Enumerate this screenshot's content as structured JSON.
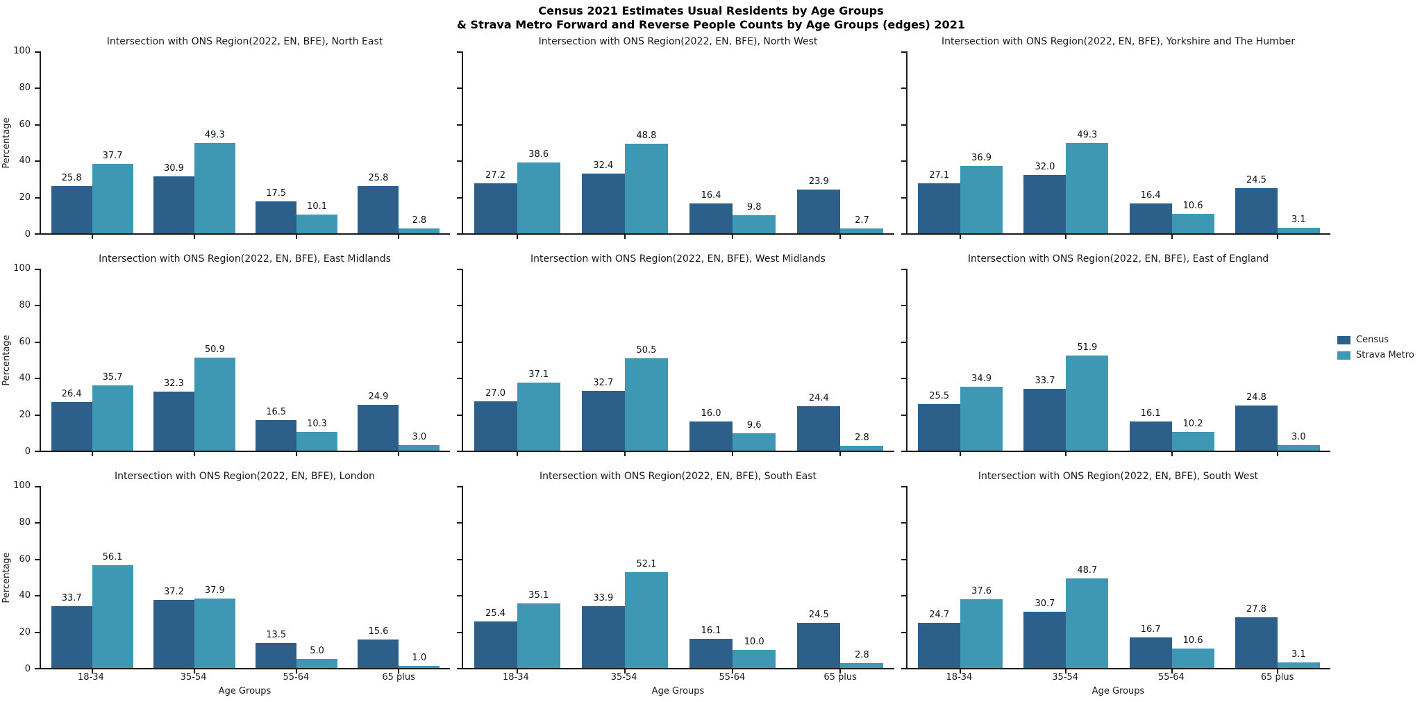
{
  "figure": {
    "title_line1": "Census 2021 Estimates Usual Residents by Age Groups",
    "title_line2": "& Strava Metro Forward and Reverse People Counts by Age Groups (edges) 2021",
    "xlabel": "Age Groups",
    "ylabel": "Percentage"
  },
  "colors": {
    "census": "#2c5f8a",
    "strava_metro": "#3e98b4",
    "axis": "#1a1a1a"
  },
  "legend": {
    "position": "center right",
    "entries": [
      {
        "label": "Census",
        "color": "#2c5f8a"
      },
      {
        "label": "Strava Metro",
        "color": "#3e98b4"
      }
    ]
  },
  "chart_data": [
    {
      "type": "bar",
      "title": "Intersection with ONS Region(2022, EN, BFE), North East",
      "region": "North East",
      "categories": [
        "18-34",
        "35-54",
        "55-64",
        "65 plus"
      ],
      "series": [
        {
          "name": "Census",
          "values": [
            25.8,
            30.9,
            17.5,
            25.8
          ]
        },
        {
          "name": "Strava Metro",
          "values": [
            37.7,
            49.3,
            10.1,
            2.8
          ]
        }
      ],
      "xlabel": "Age Groups",
      "ylabel": "Percentage",
      "ylim": [
        0,
        100
      ],
      "yticks": [
        0,
        20,
        40,
        60,
        80,
        100
      ],
      "grid": false
    },
    {
      "type": "bar",
      "title": "Intersection with ONS Region(2022, EN, BFE), North West",
      "region": "North West",
      "categories": [
        "18-34",
        "35-54",
        "55-64",
        "65 plus"
      ],
      "series": [
        {
          "name": "Census",
          "values": [
            27.2,
            32.4,
            16.4,
            23.9
          ]
        },
        {
          "name": "Strava Metro",
          "values": [
            38.6,
            48.8,
            9.8,
            2.7
          ]
        }
      ],
      "xlabel": "Age Groups",
      "ylabel": "Percentage",
      "ylim": [
        0,
        100
      ],
      "yticks": [
        0,
        20,
        40,
        60,
        80,
        100
      ],
      "grid": false
    },
    {
      "type": "bar",
      "title": "Intersection with ONS Region(2022, EN, BFE), Yorkshire and The Humber",
      "region": "Yorkshire and The Humber",
      "categories": [
        "18-34",
        "35-54",
        "55-64",
        "65 plus"
      ],
      "series": [
        {
          "name": "Census",
          "values": [
            27.1,
            32.0,
            16.4,
            24.5
          ]
        },
        {
          "name": "Strava Metro",
          "values": [
            36.9,
            49.3,
            10.6,
            3.1
          ]
        }
      ],
      "xlabel": "Age Groups",
      "ylabel": "Percentage",
      "ylim": [
        0,
        100
      ],
      "yticks": [
        0,
        20,
        40,
        60,
        80,
        100
      ],
      "grid": false
    },
    {
      "type": "bar",
      "title": "Intersection with ONS Region(2022, EN, BFE), East Midlands",
      "region": "East Midlands",
      "categories": [
        "18-34",
        "35-54",
        "55-64",
        "65 plus"
      ],
      "series": [
        {
          "name": "Census",
          "values": [
            26.4,
            32.3,
            16.5,
            24.9
          ]
        },
        {
          "name": "Strava Metro",
          "values": [
            35.7,
            50.9,
            10.3,
            3.0
          ]
        }
      ],
      "xlabel": "Age Groups",
      "ylabel": "Percentage",
      "ylim": [
        0,
        100
      ],
      "yticks": [
        0,
        20,
        40,
        60,
        80,
        100
      ],
      "grid": false
    },
    {
      "type": "bar",
      "title": "Intersection with ONS Region(2022, EN, BFE), West Midlands",
      "region": "West Midlands",
      "categories": [
        "18-34",
        "35-54",
        "55-64",
        "65 plus"
      ],
      "series": [
        {
          "name": "Census",
          "values": [
            27.0,
            32.7,
            16.0,
            24.4
          ]
        },
        {
          "name": "Strava Metro",
          "values": [
            37.1,
            50.5,
            9.6,
            2.8
          ]
        }
      ],
      "xlabel": "Age Groups",
      "ylabel": "Percentage",
      "ylim": [
        0,
        100
      ],
      "yticks": [
        0,
        20,
        40,
        60,
        80,
        100
      ],
      "grid": false
    },
    {
      "type": "bar",
      "title": "Intersection with ONS Region(2022, EN, BFE), East of England",
      "region": "East of England",
      "categories": [
        "18-34",
        "35-54",
        "55-64",
        "65 plus"
      ],
      "series": [
        {
          "name": "Census",
          "values": [
            25.5,
            33.7,
            16.1,
            24.8
          ]
        },
        {
          "name": "Strava Metro",
          "values": [
            34.9,
            51.9,
            10.2,
            3.0
          ]
        }
      ],
      "xlabel": "Age Groups",
      "ylabel": "Percentage",
      "ylim": [
        0,
        100
      ],
      "yticks": [
        0,
        20,
        40,
        60,
        80,
        100
      ],
      "grid": false
    },
    {
      "type": "bar",
      "title": "Intersection with ONS Region(2022, EN, BFE), London",
      "region": "London",
      "categories": [
        "18-34",
        "35-54",
        "55-64",
        "65 plus"
      ],
      "series": [
        {
          "name": "Census",
          "values": [
            33.7,
            37.2,
            13.5,
            15.6
          ]
        },
        {
          "name": "Strava Metro",
          "values": [
            56.1,
            37.9,
            5.0,
            1.0
          ]
        }
      ],
      "xlabel": "Age Groups",
      "ylabel": "Percentage",
      "ylim": [
        0,
        100
      ],
      "yticks": [
        0,
        20,
        40,
        60,
        80,
        100
      ],
      "grid": false
    },
    {
      "type": "bar",
      "title": "Intersection with ONS Region(2022, EN, BFE), South East",
      "region": "South East",
      "categories": [
        "18-34",
        "35-54",
        "55-64",
        "65 plus"
      ],
      "series": [
        {
          "name": "Census",
          "values": [
            25.4,
            33.9,
            16.1,
            24.5
          ]
        },
        {
          "name": "Strava Metro",
          "values": [
            35.1,
            52.1,
            10.0,
            2.8
          ]
        }
      ],
      "xlabel": "Age Groups",
      "ylabel": "Percentage",
      "ylim": [
        0,
        100
      ],
      "yticks": [
        0,
        20,
        40,
        60,
        80,
        100
      ],
      "grid": false
    },
    {
      "type": "bar",
      "title": "Intersection with ONS Region(2022, EN, BFE), South West",
      "region": "South West",
      "categories": [
        "18-34",
        "35-54",
        "55-64",
        "65 plus"
      ],
      "series": [
        {
          "name": "Census",
          "values": [
            24.7,
            30.7,
            16.7,
            27.8
          ]
        },
        {
          "name": "Strava Metro",
          "values": [
            37.6,
            48.7,
            10.6,
            3.1
          ]
        }
      ],
      "xlabel": "Age Groups",
      "ylabel": "Percentage",
      "ylim": [
        0,
        100
      ],
      "yticks": [
        0,
        20,
        40,
        60,
        80,
        100
      ],
      "grid": false
    }
  ]
}
